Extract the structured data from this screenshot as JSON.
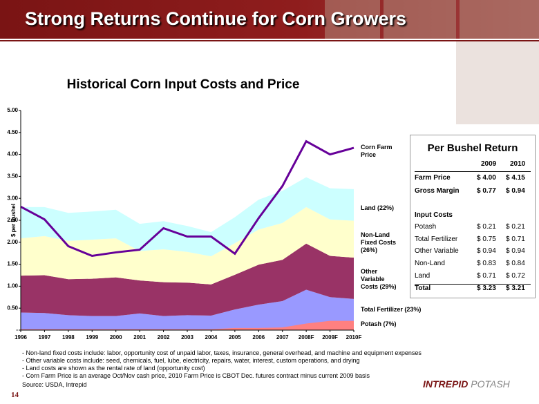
{
  "header": {
    "title": "Strong Returns Continue for Corn Growers",
    "page_number": "14",
    "logo": [
      "INTREPID",
      "POTASH"
    ]
  },
  "chart_data": {
    "type": "area",
    "title": "Historical Corn Input Costs and Price",
    "y_label": "$ per Bushel",
    "categories": [
      "1996",
      "1997",
      "1998",
      "1999",
      "2000",
      "2001",
      "2002",
      "2003",
      "2004",
      "2005",
      "2006",
      "2007",
      "2008F",
      "2009F",
      "2010F"
    ],
    "series": [
      {
        "name": "Total Fertilizer (23%)",
        "color": "#9999ff",
        "stacked": true,
        "values": [
          0.4,
          0.39,
          0.34,
          0.32,
          0.32,
          0.38,
          0.32,
          0.34,
          0.33,
          0.47,
          0.58,
          0.66,
          0.92,
          0.75,
          0.71
        ]
      },
      {
        "name": "Other Variable Costs (29%)",
        "color": "#993366",
        "stacked": true,
        "values": [
          0.84,
          0.86,
          0.82,
          0.85,
          0.88,
          0.75,
          0.77,
          0.74,
          0.71,
          0.79,
          0.91,
          0.94,
          1.05,
          0.94,
          0.94
        ]
      },
      {
        "name": "Non-Land Fixed Costs (26%)",
        "color": "#ffffcc",
        "stacked": true,
        "values": [
          0.85,
          0.89,
          0.87,
          0.89,
          0.89,
          0.67,
          0.75,
          0.7,
          0.64,
          0.72,
          0.8,
          0.84,
          0.83,
          0.83,
          0.84
        ]
      },
      {
        "name": "Land (22%)",
        "color": "#ccffff",
        "stacked": true,
        "values": [
          0.71,
          0.66,
          0.64,
          0.64,
          0.65,
          0.62,
          0.64,
          0.59,
          0.55,
          0.59,
          0.68,
          0.73,
          0.68,
          0.71,
          0.72
        ]
      },
      {
        "name": "Potash (7%)",
        "color": "#ff8080",
        "stacked": false,
        "values": [
          0.02,
          0.02,
          0.02,
          0.02,
          0.02,
          0.02,
          0.02,
          0.02,
          0.02,
          0.05,
          0.05,
          0.06,
          0.15,
          0.21,
          0.21
        ]
      },
      {
        "name": "Corn Farm Price",
        "color": "#660099",
        "type": "line",
        "values": [
          2.81,
          2.52,
          1.91,
          1.69,
          1.77,
          1.83,
          2.32,
          2.13,
          2.13,
          1.74,
          2.55,
          3.28,
          4.3,
          4.0,
          4.15
        ]
      }
    ],
    "ylim": [
      0,
      5
    ],
    "yticks": [
      {
        "value": 0,
        "label": "-"
      },
      {
        "value": 0.5,
        "label": "0.50"
      },
      {
        "value": 1,
        "label": "1.00"
      },
      {
        "value": 1.5,
        "label": "1.50"
      },
      {
        "value": 2,
        "label": "2.00"
      },
      {
        "value": 2.5,
        "label": "2.50"
      },
      {
        "value": 3,
        "label": "3.00"
      },
      {
        "value": 3.5,
        "label": "3.50"
      },
      {
        "value": 4,
        "label": "4.00"
      },
      {
        "value": 4.5,
        "label": "4.50"
      },
      {
        "value": 5,
        "label": "5.00"
      }
    ],
    "grid": false
  },
  "table": {
    "title": "Per Bushel Return",
    "columns": [
      "2009",
      "2010"
    ],
    "rows": [
      [
        "Farm Price",
        "$ 4.00",
        "$ 4.15"
      ],
      [
        "Gross Margin",
        "$ 0.77",
        "$ 0.94"
      ],
      [
        "Input Costs"
      ],
      [
        "Potash",
        "$ 0.21",
        "$ 0.21"
      ],
      [
        "Total Fertilizer",
        "$ 0.75",
        "$ 0.71"
      ],
      [
        "Other Variable",
        "$ 0.94",
        "$ 0.94"
      ],
      [
        "Non-Land",
        "$ 0.83",
        "$ 0.84"
      ],
      [
        "Land",
        "$ 0.71",
        "$ 0.72"
      ],
      [
        "Total",
        "$ 3.23",
        "$ 3.21"
      ]
    ]
  },
  "notes": [
    "- Non-land fixed costs include: labor, opportunity cost of unpaid labor, taxes, insurance, general overhead, and machine and equipment expenses",
    "- Other variable costs include: seed, chemicals, fuel, lube, electricity, repairs, water, interest, custom operations, and drying",
    "- Land costs are shown as the rental rate of land (opportunity cost)",
    "- Corn Farm Price is an average Oct/Nov cash price, 2010 Farm Price is CBOT Dec. futures contract minus current 2009 basis"
  ],
  "source": "Source: USDA, Intrepid"
}
